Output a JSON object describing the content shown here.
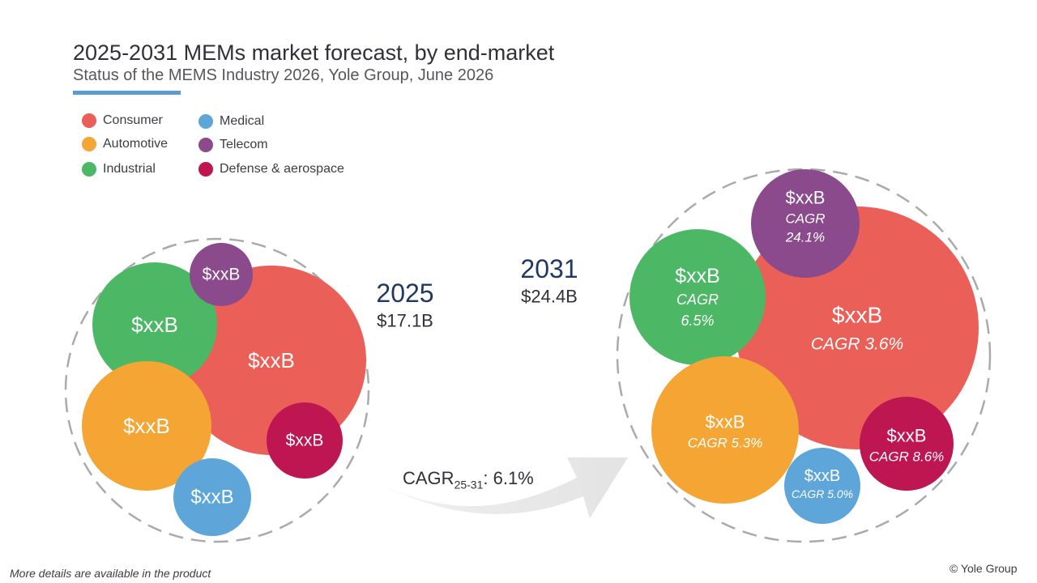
{
  "header": {
    "title": "2025-2031 MEMs market forecast, by end-market",
    "subtitle": "Status of the MEMS Industry 2026, Yole Group, June 2026"
  },
  "colors": {
    "consumer": "#ea5f58",
    "automotive": "#f4a533",
    "industrial": "#4cb866",
    "medical": "#5ea5da",
    "telecom": "#8b4a8c",
    "defense": "#be1650",
    "year_text": "#1f3864",
    "arrow": "#e6e6e6",
    "dashed_circle": "#aaaaaa"
  },
  "chart_data": {
    "type": "bubble",
    "title": "2025-2031 MEMs market forecast, by end-market",
    "legend": {
      "placement": "top-left",
      "entries": [
        {
          "key": "consumer",
          "label": "Consumer"
        },
        {
          "key": "automotive",
          "label": "Automotive"
        },
        {
          "key": "industrial",
          "label": "Industrial"
        },
        {
          "key": "medical",
          "label": "Medical"
        },
        {
          "key": "telecom",
          "label": "Telecom"
        },
        {
          "key": "defense",
          "label": "Defense & aerospace"
        }
      ]
    },
    "groups": [
      {
        "year": "2025",
        "total": "$17.1B",
        "bubbles": [
          {
            "key": "consumer",
            "value_label": "$xxB"
          },
          {
            "key": "industrial",
            "value_label": "$xxB"
          },
          {
            "key": "telecom",
            "value_label": "$xxB"
          },
          {
            "key": "automotive",
            "value_label": "$xxB"
          },
          {
            "key": "defense",
            "value_label": "$xxB"
          },
          {
            "key": "medical",
            "value_label": "$xxB"
          }
        ]
      },
      {
        "year": "2031",
        "total": "$24.4B",
        "bubbles": [
          {
            "key": "consumer",
            "value_label": "$xxB",
            "cagr_label": "CAGR 3.6%"
          },
          {
            "key": "telecom",
            "value_label": "$xxB",
            "cagr_label": "CAGR",
            "cagr_value": "24.1%"
          },
          {
            "key": "industrial",
            "value_label": "$xxB",
            "cagr_label": "CAGR",
            "cagr_value": "6.5%"
          },
          {
            "key": "automotive",
            "value_label": "$xxB",
            "cagr_label": "CAGR 5.3%"
          },
          {
            "key": "defense",
            "value_label": "$xxB",
            "cagr_label": "CAGR 8.6%"
          },
          {
            "key": "medical",
            "value_label": "$xxB",
            "cagr_label": "CAGR 5.0%"
          }
        ]
      }
    ],
    "growth": {
      "cagr_prefix": "CAGR",
      "cagr_sub": "25-31",
      "cagr_value": ": 6.1%"
    }
  },
  "footer": {
    "note": "More details are available in the product",
    "copyright": "© Yole Group"
  }
}
